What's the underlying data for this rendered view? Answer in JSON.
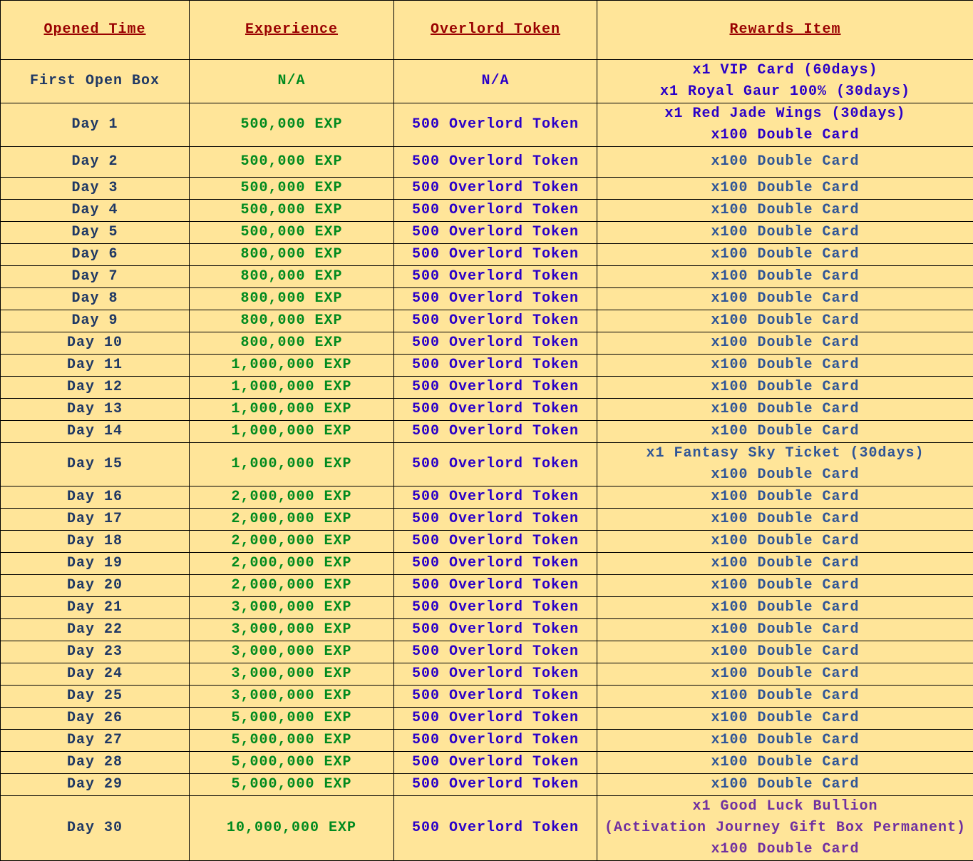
{
  "colors": {
    "background": "#ffe599",
    "header": "#990000",
    "day": "#1f3864",
    "exp": "#008a1e",
    "token": "#2a00c8",
    "reward_blue": "#2a00c8",
    "reward_gray": "#2f5597",
    "reward_purple": "#7030a0"
  },
  "headers": [
    "Opened Time",
    "Experience",
    "Overlord Token",
    "Rewards Item"
  ],
  "rows": [
    {
      "time": "First Open Box",
      "exp": "N/A",
      "token": "N/A",
      "rewards": [
        {
          "text": "x1 VIP Card  (60days)",
          "color": "#2a00c8"
        },
        {
          "text": "x1 Royal Gaur 100% (30days)",
          "color": "#2a00c8"
        }
      ]
    },
    {
      "time": "Day 1",
      "exp": "500,000 EXP",
      "token": "500 Overlord Token",
      "rewards": [
        {
          "text": "x1 Red Jade Wings (30days)",
          "color": "#2a00c8"
        },
        {
          "text": "x100 Double Card",
          "color": "#2a00c8"
        }
      ]
    },
    {
      "time": "Day 2",
      "exp": "500,000 EXP",
      "token": "500 Overlord Token",
      "rewards": [
        {
          "text": "x100 Double Card",
          "color": "#2f5597"
        }
      ]
    },
    {
      "time": "Day 3",
      "exp": "500,000 EXP",
      "token": "500 Overlord Token",
      "rewards": [
        {
          "text": "x100 Double Card",
          "color": "#2f5597"
        }
      ]
    },
    {
      "time": "Day 4",
      "exp": "500,000 EXP",
      "token": "500 Overlord Token",
      "rewards": [
        {
          "text": "x100 Double Card",
          "color": "#2f5597"
        }
      ]
    },
    {
      "time": "Day 5",
      "exp": "500,000 EXP",
      "token": "500 Overlord Token",
      "rewards": [
        {
          "text": "x100 Double Card",
          "color": "#2f5597"
        }
      ]
    },
    {
      "time": "Day 6",
      "exp": "800,000 EXP",
      "token": "500 Overlord Token",
      "rewards": [
        {
          "text": "x100 Double Card",
          "color": "#2f5597"
        }
      ]
    },
    {
      "time": "Day 7",
      "exp": "800,000 EXP",
      "token": "500 Overlord Token",
      "rewards": [
        {
          "text": "x100 Double Card",
          "color": "#2f5597"
        }
      ]
    },
    {
      "time": "Day 8",
      "exp": "800,000 EXP",
      "token": "500 Overlord Token",
      "rewards": [
        {
          "text": "x100 Double Card",
          "color": "#2f5597"
        }
      ]
    },
    {
      "time": "Day 9",
      "exp": "800,000 EXP",
      "token": "500 Overlord Token",
      "rewards": [
        {
          "text": "x100 Double Card",
          "color": "#2f5597"
        }
      ]
    },
    {
      "time": "Day 10",
      "exp": "800,000 EXP",
      "token": "500 Overlord Token",
      "rewards": [
        {
          "text": "x100 Double Card",
          "color": "#2f5597"
        }
      ]
    },
    {
      "time": "Day 11",
      "exp": "1,000,000 EXP",
      "token": "500 Overlord Token",
      "rewards": [
        {
          "text": "x100 Double Card",
          "color": "#2f5597"
        }
      ]
    },
    {
      "time": "Day 12",
      "exp": "1,000,000 EXP",
      "token": "500 Overlord Token",
      "rewards": [
        {
          "text": "x100 Double Card",
          "color": "#2f5597"
        }
      ]
    },
    {
      "time": "Day 13",
      "exp": "1,000,000 EXP",
      "token": "500 Overlord Token",
      "rewards": [
        {
          "text": "x100 Double Card",
          "color": "#2f5597"
        }
      ]
    },
    {
      "time": "Day 14",
      "exp": "1,000,000 EXP",
      "token": "500 Overlord Token",
      "rewards": [
        {
          "text": "x100 Double Card",
          "color": "#2f5597"
        }
      ]
    },
    {
      "time": "Day 15",
      "exp": "1,000,000 EXP",
      "token": "500 Overlord Token",
      "rewards": [
        {
          "text": "x1 Fantasy Sky Ticket (30days)",
          "color": "#2f5597"
        },
        {
          "text": "x100 Double Card",
          "color": "#2f5597"
        }
      ]
    },
    {
      "time": "Day 16",
      "exp": "2,000,000 EXP",
      "token": "500 Overlord Token",
      "rewards": [
        {
          "text": "x100 Double Card",
          "color": "#2f5597"
        }
      ]
    },
    {
      "time": "Day 17",
      "exp": "2,000,000 EXP",
      "token": "500 Overlord Token",
      "rewards": [
        {
          "text": "x100 Double Card",
          "color": "#2f5597"
        }
      ]
    },
    {
      "time": "Day 18",
      "exp": "2,000,000 EXP",
      "token": "500 Overlord Token",
      "rewards": [
        {
          "text": "x100 Double Card",
          "color": "#2f5597"
        }
      ]
    },
    {
      "time": "Day 19",
      "exp": "2,000,000 EXP",
      "token": "500 Overlord Token",
      "rewards": [
        {
          "text": "x100 Double Card",
          "color": "#2f5597"
        }
      ]
    },
    {
      "time": "Day 20",
      "exp": "2,000,000 EXP",
      "token": "500 Overlord Token",
      "rewards": [
        {
          "text": "x100 Double Card",
          "color": "#2f5597"
        }
      ]
    },
    {
      "time": "Day 21",
      "exp": "3,000,000 EXP",
      "token": "500 Overlord Token",
      "rewards": [
        {
          "text": "x100 Double Card",
          "color": "#2f5597"
        }
      ]
    },
    {
      "time": "Day 22",
      "exp": "3,000,000 EXP",
      "token": "500 Overlord Token",
      "rewards": [
        {
          "text": "x100 Double Card",
          "color": "#2f5597"
        }
      ]
    },
    {
      "time": "Day 23",
      "exp": "3,000,000 EXP",
      "token": "500 Overlord Token",
      "rewards": [
        {
          "text": "x100 Double Card",
          "color": "#2f5597"
        }
      ]
    },
    {
      "time": "Day 24",
      "exp": "3,000,000 EXP",
      "token": "500 Overlord Token",
      "rewards": [
        {
          "text": "x100 Double Card",
          "color": "#2f5597"
        }
      ]
    },
    {
      "time": "Day 25",
      "exp": "3,000,000 EXP",
      "token": "500 Overlord Token",
      "rewards": [
        {
          "text": "x100 Double Card",
          "color": "#2f5597"
        }
      ]
    },
    {
      "time": "Day 26",
      "exp": "5,000,000 EXP",
      "token": "500 Overlord Token",
      "rewards": [
        {
          "text": "x100 Double Card",
          "color": "#2f5597"
        }
      ]
    },
    {
      "time": "Day 27",
      "exp": "5,000,000 EXP",
      "token": "500 Overlord Token",
      "rewards": [
        {
          "text": "x100 Double Card",
          "color": "#2f5597"
        }
      ]
    },
    {
      "time": "Day 28",
      "exp": "5,000,000 EXP",
      "token": "500 Overlord Token",
      "rewards": [
        {
          "text": "x100 Double Card",
          "color": "#2f5597"
        }
      ]
    },
    {
      "time": "Day 29",
      "exp": "5,000,000 EXP",
      "token": "500 Overlord Token",
      "rewards": [
        {
          "text": "x100 Double Card",
          "color": "#2f5597"
        }
      ]
    },
    {
      "time": "Day 30",
      "exp": "10,000,000 EXP",
      "token": "500 Overlord Token",
      "rewards": [
        {
          "text": "x1 Good Luck Bullion",
          "color": "#7030a0"
        },
        {
          "text": "(Activation Journey Gift Box Permanent)",
          "color": "#7030a0"
        },
        {
          "text": "x100 Double Card",
          "color": "#7030a0"
        }
      ]
    }
  ]
}
